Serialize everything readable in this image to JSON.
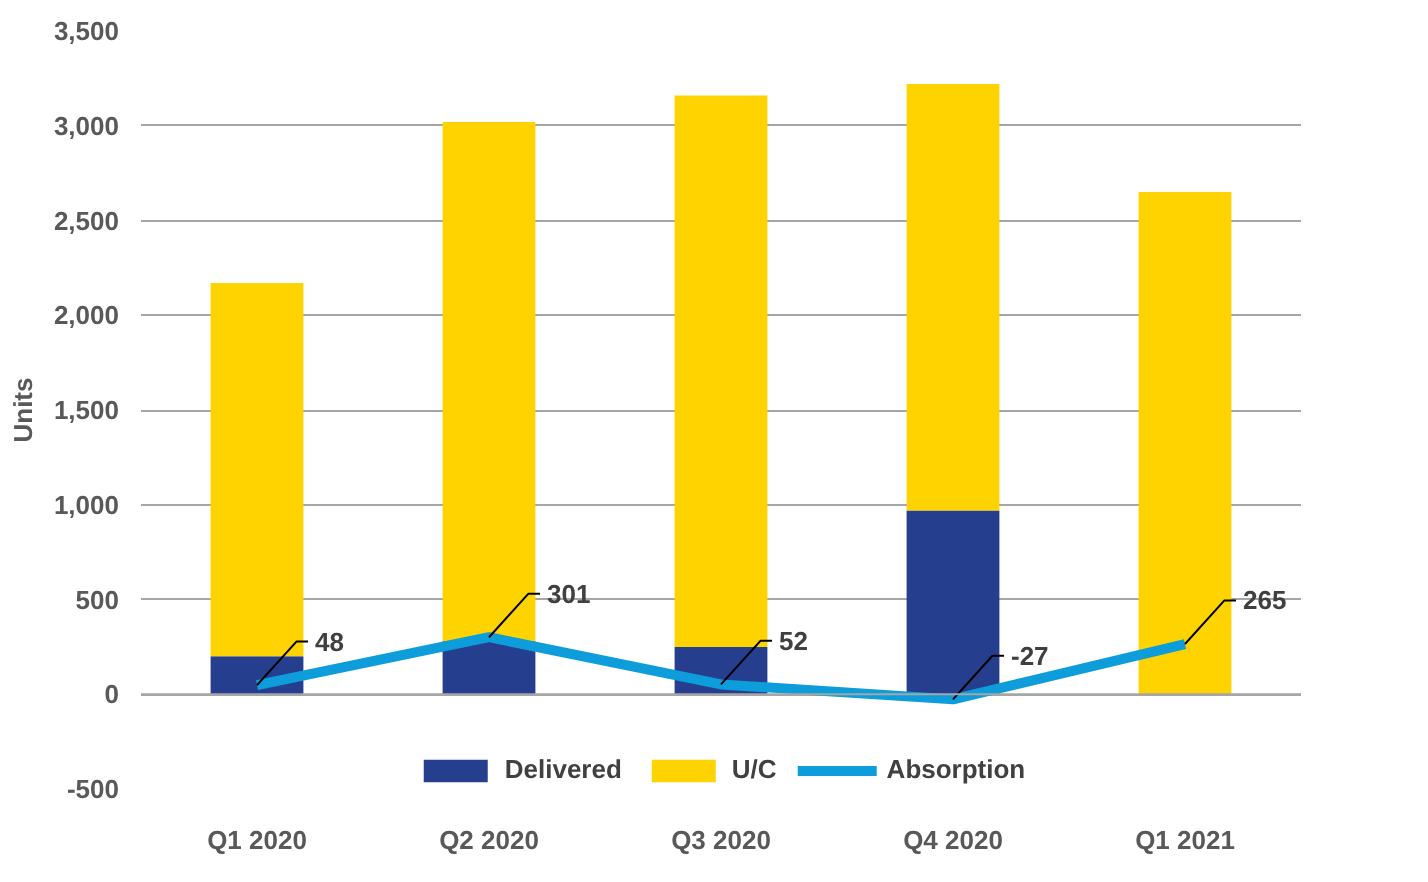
{
  "chart_data": {
    "type": "bar",
    "stacked": true,
    "ylabel": "Units",
    "categories": [
      "Q1 2020",
      "Q2 2020",
      "Q3 2020",
      "Q4 2020",
      "Q1 2021"
    ],
    "series": [
      {
        "name": "Delivered",
        "color": "#253f8e",
        "values": [
          200,
          280,
          250,
          970,
          0
        ]
      },
      {
        "name": "U/C",
        "color": "#fed300",
        "values": [
          1970,
          2740,
          2910,
          2250,
          2650
        ]
      },
      {
        "name": "Absorption",
        "type": "line",
        "color": "#0d9ddb",
        "values": [
          48,
          301,
          52,
          -27,
          265
        ],
        "value_labels": [
          "48",
          "301",
          "52",
          "-27",
          "265"
        ]
      }
    ],
    "ylim": [
      -500,
      3500
    ],
    "yticks": [
      {
        "value": -500,
        "label": "-500"
      },
      0,
      500,
      {
        "value": 1000,
        "label": "1,000"
      },
      {
        "value": 1500,
        "label": "1,500"
      },
      {
        "value": 2000,
        "label": "2,000"
      },
      {
        "value": 2500,
        "label": "2,500"
      },
      {
        "value": 3000,
        "label": "3,000"
      },
      {
        "value": 3500,
        "label": "3,500"
      }
    ],
    "grid": "y",
    "legend": "bottom"
  }
}
